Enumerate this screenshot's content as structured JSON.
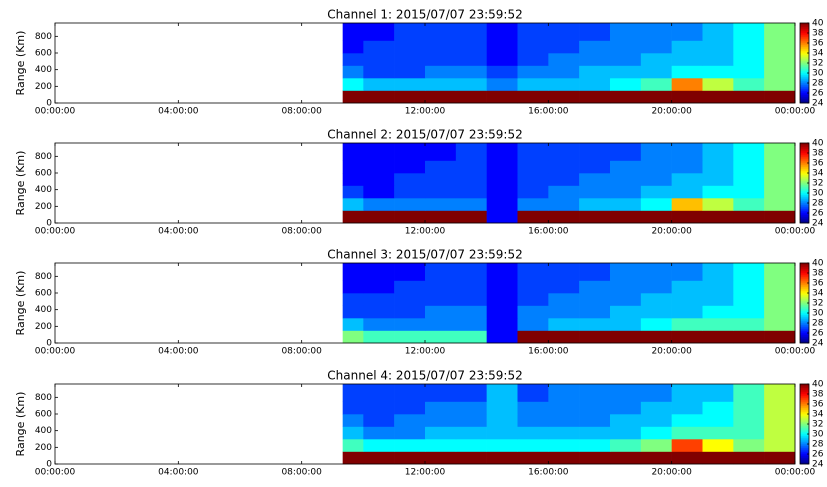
{
  "chart_data": [
    {
      "type": "heatmap",
      "title": "Channel 1: 2015/07/07 23:59:52",
      "ylabel": "Range (Km)",
      "xlim": [
        0,
        24
      ],
      "xticks": [
        {
          "value": 0,
          "label": "00:00:00"
        },
        {
          "value": 4,
          "label": "04:00:00"
        },
        {
          "value": 8,
          "label": "08:00:00"
        },
        {
          "value": 12,
          "label": "12:00:00"
        },
        {
          "value": 16,
          "label": "16:00:00"
        },
        {
          "value": 20,
          "label": "20:00:00"
        },
        {
          "value": 24,
          "label": "00:00:00"
        }
      ],
      "ylim": [
        0,
        960
      ],
      "yticks": [
        0,
        200,
        400,
        600,
        800
      ],
      "x_edges": [
        9.33,
        10,
        11,
        12,
        13,
        14,
        15,
        16,
        17,
        18,
        19,
        20,
        21,
        22,
        23,
        24
      ],
      "y_edges": [
        0,
        150,
        300,
        450,
        600,
        750,
        960
      ],
      "z": [
        [
          40,
          40,
          40,
          40,
          40,
          40,
          40,
          40,
          40,
          40,
          40,
          40,
          40,
          40,
          40
        ],
        [
          30,
          29,
          29,
          29,
          29,
          28,
          29,
          29,
          29,
          30,
          31,
          36,
          33,
          31,
          32
        ],
        [
          28,
          27,
          27,
          28,
          28,
          27,
          28,
          28,
          29,
          29,
          29,
          30,
          30,
          30,
          32
        ],
        [
          27,
          27,
          27,
          27,
          27,
          26,
          27,
          28,
          28,
          28,
          29,
          29,
          29,
          30,
          32
        ],
        [
          26,
          27,
          27,
          27,
          27,
          26,
          27,
          27,
          28,
          28,
          28,
          29,
          29,
          30,
          32
        ],
        [
          26,
          26,
          27,
          27,
          27,
          26,
          27,
          27,
          27,
          28,
          28,
          28,
          29,
          30,
          32
        ]
      ],
      "colormap": "jet",
      "clim": [
        24,
        40
      ],
      "cbar_ticks": [
        24,
        26,
        28,
        30,
        32,
        34,
        36,
        38,
        40
      ]
    },
    {
      "type": "heatmap",
      "title": "Channel 2: 2015/07/07 23:59:52",
      "ylabel": "Range (Km)",
      "xlim": [
        0,
        24
      ],
      "xticks": [
        {
          "value": 0,
          "label": "00:00:00"
        },
        {
          "value": 4,
          "label": "04:00:00"
        },
        {
          "value": 8,
          "label": "08:00:00"
        },
        {
          "value": 12,
          "label": "12:00:00"
        },
        {
          "value": 16,
          "label": "16:00:00"
        },
        {
          "value": 20,
          "label": "20:00:00"
        },
        {
          "value": 24,
          "label": "00:00:00"
        }
      ],
      "ylim": [
        0,
        960
      ],
      "yticks": [
        0,
        200,
        400,
        600,
        800
      ],
      "x_edges": [
        9.33,
        10,
        11,
        12,
        13,
        14,
        15,
        16,
        17,
        18,
        19,
        20,
        21,
        22,
        23,
        24
      ],
      "y_edges": [
        0,
        150,
        300,
        450,
        600,
        750,
        960
      ],
      "z": [
        [
          40,
          40,
          40,
          40,
          40,
          26,
          40,
          40,
          40,
          40,
          40,
          40,
          40,
          40,
          40
        ],
        [
          29,
          28,
          28,
          28,
          28,
          26,
          28,
          28,
          29,
          29,
          30,
          35,
          33,
          31,
          32
        ],
        [
          27,
          26,
          27,
          27,
          27,
          26,
          27,
          28,
          28,
          28,
          29,
          29,
          30,
          30,
          32
        ],
        [
          26,
          26,
          27,
          27,
          27,
          26,
          27,
          27,
          28,
          28,
          28,
          29,
          29,
          30,
          32
        ],
        [
          26,
          26,
          26,
          27,
          27,
          26,
          27,
          27,
          27,
          28,
          28,
          28,
          29,
          30,
          32
        ],
        [
          26,
          26,
          26,
          26,
          27,
          26,
          27,
          27,
          27,
          27,
          28,
          28,
          29,
          30,
          32
        ]
      ],
      "colormap": "jet",
      "clim": [
        24,
        40
      ],
      "cbar_ticks": [
        24,
        26,
        28,
        30,
        32,
        34,
        36,
        38,
        40
      ]
    },
    {
      "type": "heatmap",
      "title": "Channel 3: 2015/07/07 23:59:52",
      "ylabel": "Range (Km)",
      "xlim": [
        0,
        24
      ],
      "xticks": [
        {
          "value": 0,
          "label": "00:00:00"
        },
        {
          "value": 4,
          "label": "04:00:00"
        },
        {
          "value": 8,
          "label": "08:00:00"
        },
        {
          "value": 12,
          "label": "12:00:00"
        },
        {
          "value": 16,
          "label": "16:00:00"
        },
        {
          "value": 20,
          "label": "20:00:00"
        },
        {
          "value": 24,
          "label": "00:00:00"
        }
      ],
      "ylim": [
        0,
        960
      ],
      "yticks": [
        0,
        200,
        400,
        600,
        800
      ],
      "x_edges": [
        9.33,
        10,
        11,
        12,
        13,
        14,
        15,
        16,
        17,
        18,
        19,
        20,
        21,
        22,
        23,
        24
      ],
      "y_edges": [
        0,
        150,
        300,
        450,
        600,
        750,
        960
      ],
      "z": [
        [
          32,
          31,
          31,
          31,
          31,
          26,
          40,
          40,
          40,
          40,
          40,
          40,
          40,
          40,
          40
        ],
        [
          29,
          28,
          28,
          28,
          28,
          26,
          28,
          29,
          29,
          29,
          30,
          31,
          31,
          31,
          32
        ],
        [
          27,
          27,
          27,
          28,
          28,
          26,
          28,
          28,
          28,
          29,
          29,
          29,
          30,
          30,
          32
        ],
        [
          27,
          27,
          27,
          27,
          27,
          26,
          27,
          28,
          28,
          28,
          29,
          29,
          29,
          30,
          32
        ],
        [
          26,
          26,
          27,
          27,
          27,
          26,
          27,
          27,
          28,
          28,
          28,
          29,
          29,
          30,
          32
        ],
        [
          26,
          26,
          26,
          27,
          27,
          26,
          27,
          27,
          27,
          28,
          28,
          28,
          29,
          30,
          32
        ]
      ],
      "colormap": "jet",
      "clim": [
        24,
        40
      ],
      "cbar_ticks": [
        24,
        26,
        28,
        30,
        32,
        34,
        36,
        38,
        40
      ]
    },
    {
      "type": "heatmap",
      "title": "Channel 4: 2015/07/07 23:59:52",
      "ylabel": "Range (Km)",
      "xlim": [
        0,
        24
      ],
      "xticks": [
        {
          "value": 0,
          "label": "00:00:00"
        },
        {
          "value": 4,
          "label": "04:00:00"
        },
        {
          "value": 8,
          "label": "08:00:00"
        },
        {
          "value": 12,
          "label": "12:00:00"
        },
        {
          "value": 16,
          "label": "16:00:00"
        },
        {
          "value": 20,
          "label": "20:00:00"
        },
        {
          "value": 24,
          "label": "00:00:00"
        }
      ],
      "ylim": [
        0,
        960
      ],
      "yticks": [
        0,
        200,
        400,
        600,
        800
      ],
      "x_edges": [
        9.33,
        10,
        11,
        12,
        13,
        14,
        15,
        16,
        17,
        18,
        19,
        20,
        21,
        22,
        23,
        24
      ],
      "y_edges": [
        0,
        150,
        300,
        450,
        600,
        750,
        960
      ],
      "z": [
        [
          40,
          40,
          40,
          40,
          40,
          40,
          40,
          40,
          40,
          40,
          40,
          40,
          40,
          40,
          40
        ],
        [
          31,
          30,
          30,
          30,
          30,
          30,
          30,
          30,
          30,
          31,
          32,
          37,
          34,
          32,
          33
        ],
        [
          29,
          28,
          28,
          29,
          29,
          29,
          29,
          29,
          29,
          29,
          30,
          31,
          31,
          31,
          33
        ],
        [
          28,
          27,
          28,
          28,
          28,
          29,
          28,
          28,
          28,
          29,
          29,
          30,
          30,
          31,
          33
        ],
        [
          27,
          27,
          27,
          28,
          28,
          29,
          28,
          28,
          28,
          28,
          29,
          29,
          30,
          31,
          33
        ],
        [
          27,
          27,
          27,
          27,
          27,
          29,
          27,
          28,
          28,
          28,
          28,
          29,
          29,
          31,
          33
        ]
      ],
      "colormap": "jet",
      "clim": [
        24,
        40
      ],
      "cbar_ticks": [
        24,
        26,
        28,
        30,
        32,
        34,
        36,
        38,
        40
      ]
    }
  ]
}
